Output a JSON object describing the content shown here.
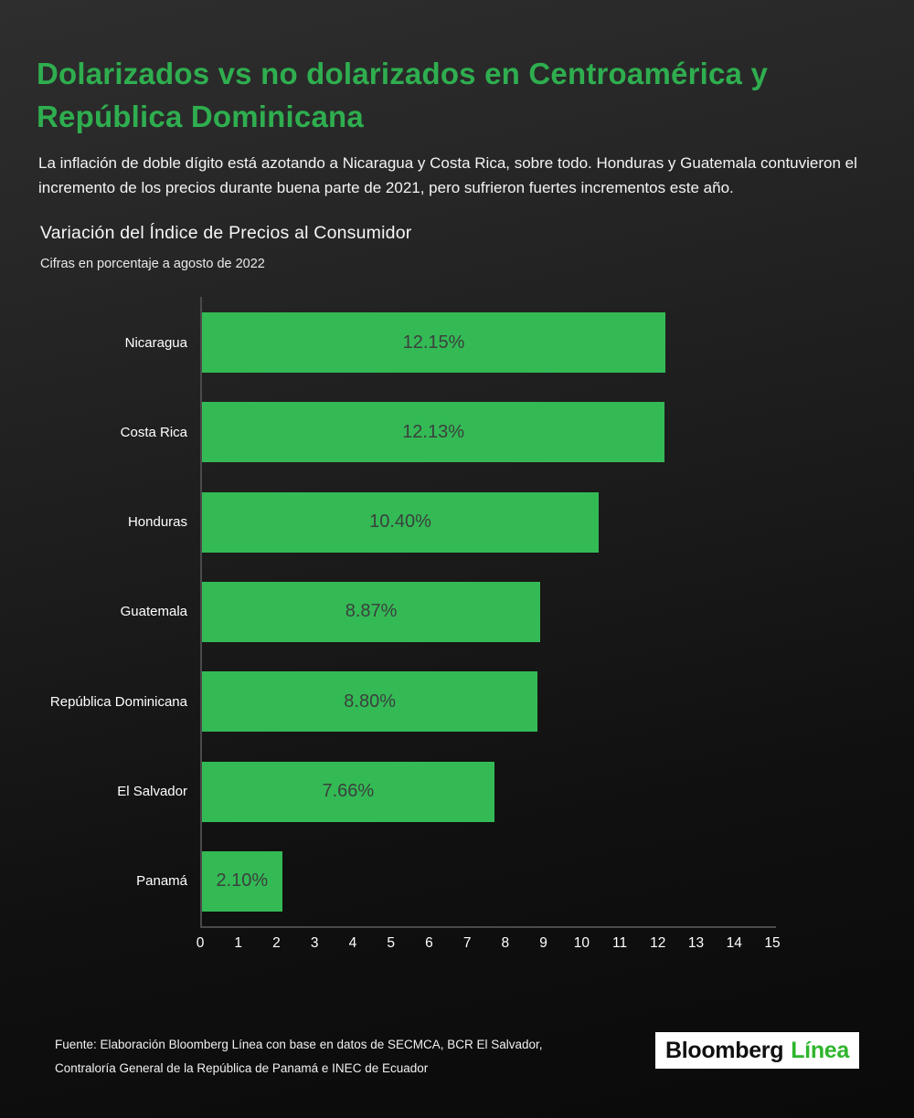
{
  "page": {
    "title": "Dolarizados vs no dolarizados en Centroamérica y República Dominicana",
    "lede": "La inflación de doble dígito está azotando a Nicaragua y Costa Rica, sobre todo. Honduras y Guatemala contuvieron el incremento de los precios durante buena parte de 2021, pero sufrieron fuertes incrementos este año."
  },
  "chart_data": {
    "type": "bar",
    "orientation": "horizontal",
    "title": "Variación del Índice de Precios al Consumidor",
    "subtitle": "Cifras en porcentaje a agosto de 2022",
    "categories": [
      "Nicaragua",
      "Costa Rica",
      "Honduras",
      "Guatemala",
      "República Dominicana",
      "El Salvador",
      "Panamá"
    ],
    "values": [
      12.15,
      12.13,
      10.4,
      8.87,
      8.8,
      7.66,
      2.1
    ],
    "value_labels": [
      "12.15%",
      "12.13%",
      "10.40%",
      "8.87%",
      "8.80%",
      "7.66%",
      "2.10%"
    ],
    "xlabel": "",
    "ylabel": "",
    "xlim": [
      0,
      15
    ],
    "x_ticks": [
      0,
      1,
      2,
      3,
      4,
      5,
      6,
      7,
      8,
      9,
      10,
      11,
      12,
      13,
      14,
      15
    ],
    "grid": false,
    "legend": "none",
    "bar_color": "#34ba55",
    "value_label_position": "inside-center"
  },
  "footer": {
    "source_line1": "Fuente: Elaboración Bloomberg Línea con base en datos de SECMCA, BCR El Salvador,",
    "source_line2": "Contraloría General de la República de Panamá e INEC de Ecuador",
    "logo_part1": "Bloomberg",
    "logo_part2": "Línea"
  },
  "colors": {
    "title_green": "#2fae4f",
    "bar_green": "#34ba55",
    "logo_green": "#2eb52c",
    "value_text": "#3a403d",
    "axis_line": "#4a4a4a",
    "background_top": "#2e2e2e",
    "background_bottom": "#0a0a0a"
  }
}
